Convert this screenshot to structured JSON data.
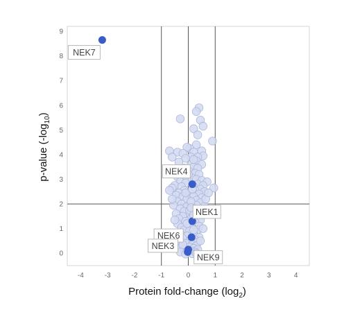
{
  "chart_data": {
    "type": "scatter",
    "xlabel": "Protein fold-change (log",
    "xlabel_sub": "2",
    "xlabel_close": ")",
    "ylabel": "p-value (-log",
    "ylabel_sub": "10",
    "ylabel_close": ")",
    "xlim": [
      -4.5,
      4.5
    ],
    "ylim": [
      -0.5,
      9.2
    ],
    "xticks": [
      -4,
      -3,
      -2,
      -1,
      0,
      1,
      2,
      3,
      4
    ],
    "yticks": [
      0,
      1,
      2,
      3,
      4,
      5,
      6,
      7,
      8,
      9
    ],
    "reference_lines": {
      "vertical": [
        -1,
        0,
        1
      ],
      "horizontal": [
        2
      ]
    },
    "colors": {
      "background_points": "#d3daf1",
      "background_points_edge": "#a9b4d8",
      "highlight_points": "#3a5cc9",
      "reference_lines": "#555555",
      "frame": "#d6d6d6"
    },
    "highlighted": [
      {
        "name": "NEK7",
        "x": -3.2,
        "y": 8.65
      },
      {
        "name": "NEK4",
        "x": 0.15,
        "y": 2.8
      },
      {
        "name": "NEK1",
        "x": 0.15,
        "y": 1.3
      },
      {
        "name": "NEK6",
        "x": 0.12,
        "y": 0.65
      },
      {
        "name": "NEK3",
        "x": 0.0,
        "y": 0.15
      },
      {
        "name": "NEK9",
        "x": -0.02,
        "y": 0.05
      }
    ],
    "series": [
      {
        "points": [
          [
            0.4,
            5.9
          ],
          [
            0.3,
            5.75
          ],
          [
            0.45,
            5.4
          ],
          [
            -0.3,
            5.45
          ],
          [
            0.2,
            5.05
          ],
          [
            0.55,
            5.15
          ],
          [
            0.35,
            4.8
          ],
          [
            0.9,
            4.55
          ],
          [
            0.3,
            4.4
          ],
          [
            0.05,
            4.25
          ],
          [
            -0.05,
            4.3
          ],
          [
            0.2,
            4.1
          ],
          [
            0.5,
            4.15
          ],
          [
            -0.7,
            4.15
          ],
          [
            -0.4,
            4.1
          ],
          [
            -0.2,
            4.05
          ],
          [
            -0.6,
            3.9
          ],
          [
            0.55,
            3.95
          ],
          [
            0.1,
            3.9
          ],
          [
            -0.1,
            3.85
          ],
          [
            0.35,
            3.9
          ],
          [
            0.3,
            3.75
          ],
          [
            -0.35,
            3.7
          ],
          [
            0.1,
            3.6
          ],
          [
            0.5,
            3.6
          ],
          [
            0.2,
            3.5
          ],
          [
            -0.15,
            3.45
          ],
          [
            0.35,
            3.45
          ],
          [
            0.05,
            3.3
          ],
          [
            0.25,
            3.25
          ],
          [
            -0.25,
            3.25
          ],
          [
            0.4,
            3.2
          ],
          [
            -0.4,
            3.1
          ],
          [
            0.15,
            3.05
          ],
          [
            0.3,
            3.0
          ],
          [
            -0.05,
            3.0
          ],
          [
            0.5,
            2.95
          ],
          [
            -0.3,
            2.9
          ],
          [
            0.7,
            2.9
          ],
          [
            -0.1,
            2.85
          ],
          [
            0.35,
            2.8
          ],
          [
            -0.5,
            2.75
          ],
          [
            0.55,
            2.75
          ],
          [
            -0.25,
            2.7
          ],
          [
            0.2,
            2.7
          ],
          [
            0.95,
            2.65
          ],
          [
            -0.6,
            2.65
          ],
          [
            0.45,
            2.6
          ],
          [
            0.25,
            2.55
          ],
          [
            -0.15,
            2.55
          ],
          [
            0.6,
            2.5
          ],
          [
            -0.35,
            2.45
          ],
          [
            0.05,
            2.45
          ],
          [
            0.4,
            2.4
          ],
          [
            -0.45,
            2.35
          ],
          [
            0.2,
            2.3
          ],
          [
            -0.2,
            2.3
          ],
          [
            0.5,
            2.25
          ],
          [
            -0.05,
            2.2
          ],
          [
            0.3,
            2.15
          ],
          [
            -0.4,
            2.1
          ],
          [
            0.1,
            2.05
          ],
          [
            0.45,
            2.05
          ],
          [
            -0.25,
            2.0
          ],
          [
            -0.55,
            1.95
          ],
          [
            0.3,
            1.95
          ],
          [
            -0.05,
            1.9
          ],
          [
            0.6,
            1.9
          ],
          [
            0.15,
            1.85
          ],
          [
            -0.3,
            1.8
          ],
          [
            0.4,
            1.75
          ],
          [
            -0.15,
            1.7
          ],
          [
            0.25,
            1.65
          ],
          [
            -0.45,
            1.6
          ],
          [
            0.05,
            1.6
          ],
          [
            0.5,
            1.55
          ],
          [
            -0.2,
            1.5
          ],
          [
            0.3,
            1.45
          ],
          [
            -0.35,
            1.4
          ],
          [
            0.1,
            1.4
          ],
          [
            0.45,
            1.35
          ],
          [
            -0.1,
            1.3
          ],
          [
            0.25,
            1.25
          ],
          [
            -0.4,
            1.2
          ],
          [
            0.05,
            1.15
          ],
          [
            0.4,
            1.1
          ],
          [
            -0.25,
            1.05
          ],
          [
            0.15,
            1.0
          ],
          [
            0.35,
            0.95
          ],
          [
            -0.15,
            0.95
          ],
          [
            0.05,
            0.9
          ],
          [
            0.3,
            0.85
          ],
          [
            -0.3,
            0.8
          ],
          [
            0.2,
            0.75
          ],
          [
            -0.05,
            0.7
          ],
          [
            0.4,
            0.65
          ],
          [
            -0.2,
            0.6
          ],
          [
            0.25,
            0.55
          ],
          [
            0.05,
            0.5
          ],
          [
            -0.35,
            0.45
          ],
          [
            0.35,
            0.45
          ],
          [
            -0.1,
            0.4
          ],
          [
            0.15,
            0.35
          ],
          [
            0.3,
            0.3
          ],
          [
            -0.25,
            0.25
          ],
          [
            0.05,
            0.25
          ],
          [
            0.2,
            0.2
          ],
          [
            -0.15,
            0.15
          ],
          [
            0.35,
            0.15
          ],
          [
            0.1,
            0.1
          ],
          [
            -0.05,
            0.05
          ],
          [
            0.25,
            0.05
          ],
          [
            -0.3,
            0.05
          ],
          [
            0.15,
            -0.02
          ],
          [
            -0.1,
            -0.03
          ],
          [
            0.3,
            0.0
          ],
          [
            -0.2,
            0.35
          ],
          [
            0.45,
            0.5
          ],
          [
            -0.4,
            0.75
          ],
          [
            0.55,
            1.0
          ],
          [
            -0.5,
            1.35
          ],
          [
            0.55,
            1.65
          ],
          [
            -0.6,
            2.2
          ],
          [
            0.65,
            2.2
          ],
          [
            -0.7,
            2.55
          ],
          [
            0.75,
            2.45
          ],
          [
            0.05,
            1.75
          ],
          [
            0.2,
            1.55
          ],
          [
            -0.1,
            2.45
          ],
          [
            0.15,
            2.6
          ],
          [
            0.0,
            3.2
          ],
          [
            0.2,
            3.8
          ],
          [
            0.1,
            2.1
          ],
          [
            -0.05,
            1.2
          ],
          [
            0.2,
            0.95
          ],
          [
            0.1,
            1.85
          ]
        ]
      }
    ]
  }
}
